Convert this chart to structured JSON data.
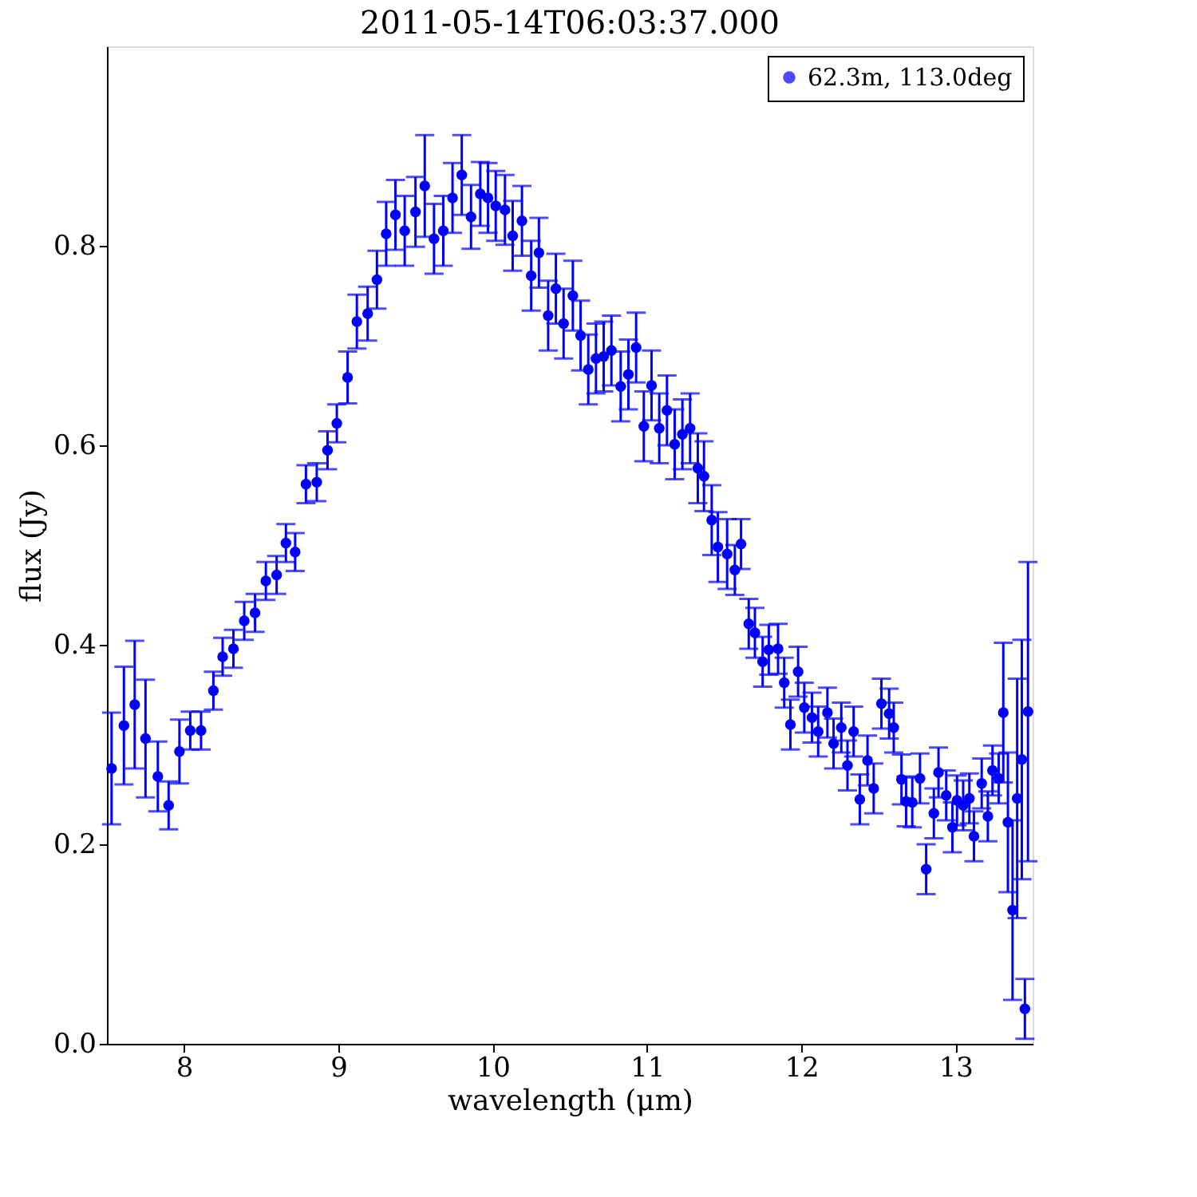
{
  "chart_data": {
    "type": "scatter",
    "title": "2011-05-14T06:03:37.000",
    "xlabel": "wavelength (μm)",
    "ylabel": "flux (Jy)",
    "xlim": [
      7.5,
      13.5
    ],
    "xticks": [
      8,
      9,
      10,
      11,
      12,
      13
    ],
    "ylim": [
      0,
      1.0
    ],
    "yticks": [
      {
        "value": 0,
        "label": "0.0"
      },
      {
        "value": 0.2,
        "label": "0.2"
      },
      {
        "value": 0.4,
        "label": "0.4"
      },
      {
        "value": 0.6,
        "label": "0.6"
      },
      {
        "value": 0.8,
        "label": "0.8"
      }
    ],
    "grid": false,
    "legend": "top right",
    "marker": "circle",
    "series": [
      {
        "name": "62.3m, 113.0deg",
        "color": "#0000ff",
        "x": [
          7.53,
          7.61,
          7.68,
          7.75,
          7.83,
          7.9,
          7.97,
          8.04,
          8.11,
          8.19,
          8.25,
          8.32,
          8.39,
          8.46,
          8.53,
          8.6,
          8.66,
          8.72,
          8.79,
          8.86,
          8.93,
          8.99,
          9.06,
          9.12,
          9.19,
          9.25,
          9.31,
          9.37,
          9.43,
          9.5,
          9.56,
          9.62,
          9.68,
          9.74,
          9.8,
          9.86,
          9.92,
          9.97,
          10.02,
          10.08,
          10.13,
          10.19,
          10.25,
          10.3,
          10.36,
          10.41,
          10.46,
          10.52,
          10.57,
          10.62,
          10.67,
          10.72,
          10.77,
          10.83,
          10.88,
          10.93,
          10.98,
          11.03,
          11.08,
          11.13,
          11.18,
          11.23,
          11.28,
          11.33,
          11.37,
          11.42,
          11.46,
          11.52,
          11.57,
          11.61,
          11.66,
          11.7,
          11.75,
          11.79,
          11.85,
          11.89,
          11.93,
          11.98,
          12.02,
          12.07,
          12.11,
          12.17,
          12.21,
          12.26,
          12.3,
          12.34,
          12.38,
          12.43,
          12.47,
          12.52,
          12.57,
          12.6,
          12.65,
          12.68,
          12.72,
          12.77,
          12.81,
          12.86,
          12.89,
          12.94,
          12.98,
          13.01,
          13.05,
          13.09,
          13.12,
          13.17,
          13.21,
          13.24,
          13.28,
          13.31,
          13.34,
          13.37,
          13.4,
          13.43,
          13.45,
          13.47
        ],
        "values": [
          0.276,
          0.319,
          0.34,
          0.306,
          0.268,
          0.239,
          0.293,
          0.314,
          0.314,
          0.354,
          0.388,
          0.396,
          0.424,
          0.432,
          0.464,
          0.47,
          0.502,
          0.493,
          0.561,
          0.563,
          0.595,
          0.622,
          0.668,
          0.724,
          0.732,
          0.766,
          0.812,
          0.831,
          0.815,
          0.834,
          0.86,
          0.807,
          0.815,
          0.848,
          0.871,
          0.829,
          0.852,
          0.848,
          0.84,
          0.836,
          0.81,
          0.825,
          0.77,
          0.793,
          0.73,
          0.757,
          0.722,
          0.75,
          0.71,
          0.676,
          0.687,
          0.689,
          0.695,
          0.659,
          0.671,
          0.698,
          0.619,
          0.66,
          0.617,
          0.635,
          0.601,
          0.611,
          0.617,
          0.577,
          0.569,
          0.525,
          0.498,
          0.491,
          0.475,
          0.501,
          0.421,
          0.412,
          0.383,
          0.395,
          0.396,
          0.362,
          0.32,
          0.373,
          0.337,
          0.327,
          0.313,
          0.332,
          0.301,
          0.317,
          0.279,
          0.313,
          0.245,
          0.284,
          0.256,
          0.341,
          0.331,
          0.317,
          0.265,
          0.243,
          0.242,
          0.266,
          0.175,
          0.231,
          0.272,
          0.249,
          0.217,
          0.244,
          0.239,
          0.246,
          0.208,
          0.261,
          0.228,
          0.274,
          0.266,
          0.332,
          0.222,
          0.134,
          0.246,
          0.285,
          0.035,
          0.333
        ],
        "errors": [
          0.056,
          0.059,
          0.064,
          0.059,
          0.035,
          0.024,
          0.032,
          0.019,
          0.019,
          0.019,
          0.019,
          0.019,
          0.019,
          0.019,
          0.019,
          0.019,
          0.019,
          0.019,
          0.019,
          0.019,
          0.019,
          0.019,
          0.026,
          0.027,
          0.027,
          0.029,
          0.032,
          0.035,
          0.035,
          0.035,
          0.051,
          0.035,
          0.035,
          0.035,
          0.04,
          0.032,
          0.032,
          0.035,
          0.035,
          0.035,
          0.035,
          0.035,
          0.035,
          0.035,
          0.035,
          0.035,
          0.035,
          0.035,
          0.035,
          0.035,
          0.035,
          0.035,
          0.035,
          0.035,
          0.035,
          0.035,
          0.035,
          0.035,
          0.035,
          0.035,
          0.035,
          0.035,
          0.035,
          0.035,
          0.035,
          0.035,
          0.035,
          0.035,
          0.025,
          0.025,
          0.025,
          0.025,
          0.025,
          0.025,
          0.025,
          0.025,
          0.025,
          0.025,
          0.025,
          0.025,
          0.025,
          0.025,
          0.025,
          0.025,
          0.025,
          0.025,
          0.025,
          0.025,
          0.025,
          0.025,
          0.025,
          0.025,
          0.025,
          0.025,
          0.025,
          0.025,
          0.025,
          0.025,
          0.025,
          0.025,
          0.025,
          0.025,
          0.025,
          0.025,
          0.025,
          0.025,
          0.025,
          0.025,
          0.025,
          0.07,
          0.07,
          0.09,
          0.12,
          0.12,
          0.03,
          0.15
        ]
      }
    ]
  }
}
